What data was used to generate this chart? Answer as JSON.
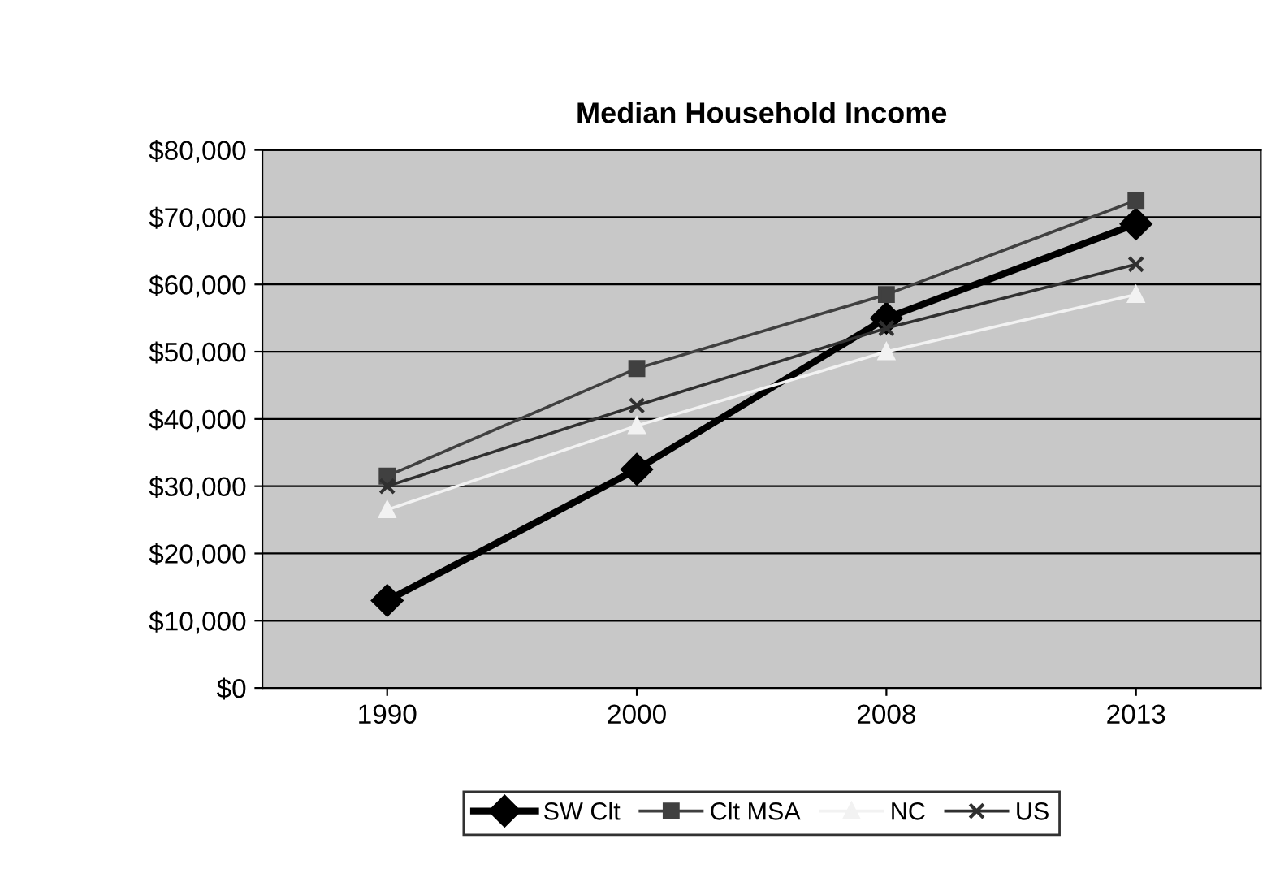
{
  "chart_data": {
    "type": "line",
    "title": "Median Household Income",
    "categories": [
      "1990",
      "2000",
      "2008",
      "2013"
    ],
    "series": [
      {
        "name": "SW Clt",
        "color": "#000000",
        "marker": "diamond",
        "values": [
          13000,
          32500,
          55000,
          69000
        ]
      },
      {
        "name": "Clt MSA",
        "color": "#404040",
        "marker": "square",
        "values": [
          31500,
          47500,
          58500,
          72500
        ]
      },
      {
        "name": "NC",
        "color": "#f2f2f2",
        "marker": "triangle",
        "values": [
          26500,
          39000,
          50000,
          58500
        ]
      },
      {
        "name": "US",
        "color": "#303030",
        "marker": "cross",
        "values": [
          30000,
          42000,
          53500,
          63000
        ]
      }
    ],
    "ylim": [
      0,
      80000
    ],
    "yticks": [
      {
        "value": 0,
        "label": "$0"
      },
      {
        "value": 10000,
        "label": "$10,000"
      },
      {
        "value": 20000,
        "label": "$20,000"
      },
      {
        "value": 30000,
        "label": "$30,000"
      },
      {
        "value": 40000,
        "label": "$40,000"
      },
      {
        "value": 50000,
        "label": "$50,000"
      },
      {
        "value": 60000,
        "label": "$60,000"
      },
      {
        "value": 70000,
        "label": "$70,000"
      },
      {
        "value": 80000,
        "label": "$80,000"
      }
    ],
    "grid": "y",
    "legend": "bottom",
    "line_style": "solid"
  }
}
